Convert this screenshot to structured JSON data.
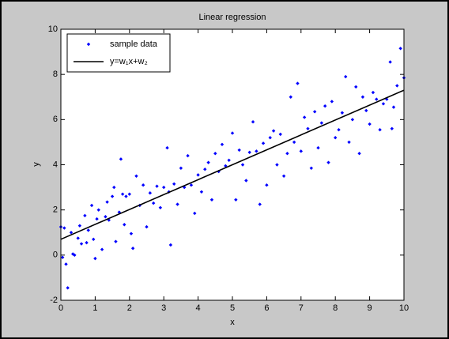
{
  "chart_data": {
    "type": "scatter",
    "title": "Linear regression",
    "x_label": "x",
    "y_label": "y",
    "xlim": [
      0,
      10
    ],
    "ylim": [
      -2,
      10
    ],
    "xticks": [
      0,
      1,
      2,
      3,
      4,
      5,
      6,
      7,
      8,
      9,
      10
    ],
    "yticks": [
      -2,
      0,
      2,
      4,
      6,
      8,
      10
    ],
    "legend": "upper left",
    "series": [
      {
        "name": "sample data",
        "color": "#0000ff",
        "style": "markers",
        "x": [
          0.0,
          0.05,
          0.1,
          0.15,
          0.2,
          0.3,
          0.35,
          0.4,
          0.5,
          0.55,
          0.6,
          0.7,
          0.75,
          0.8,
          0.9,
          0.95,
          1.0,
          1.05,
          1.1,
          1.2,
          1.3,
          1.35,
          1.4,
          1.5,
          1.55,
          1.6,
          1.7,
          1.75,
          1.8,
          1.85,
          1.9,
          2.0,
          2.05,
          2.1,
          2.2,
          2.3,
          2.4,
          2.5,
          2.6,
          2.7,
          2.8,
          2.9,
          3.0,
          3.1,
          3.15,
          3.2,
          3.3,
          3.4,
          3.5,
          3.6,
          3.7,
          3.8,
          3.9,
          4.0,
          4.1,
          4.2,
          4.3,
          4.4,
          4.5,
          4.6,
          4.7,
          4.8,
          4.9,
          5.0,
          5.1,
          5.2,
          5.3,
          5.4,
          5.5,
          5.6,
          5.7,
          5.8,
          5.9,
          6.0,
          6.1,
          6.2,
          6.3,
          6.4,
          6.5,
          6.6,
          6.7,
          6.8,
          6.9,
          7.0,
          7.1,
          7.2,
          7.3,
          7.4,
          7.5,
          7.6,
          7.7,
          7.8,
          7.9,
          8.0,
          8.1,
          8.2,
          8.3,
          8.4,
          8.5,
          8.6,
          8.7,
          8.8,
          8.9,
          9.0,
          9.1,
          9.2,
          9.3,
          9.4,
          9.5,
          9.6,
          9.65,
          9.7,
          9.8,
          9.9,
          10.0
        ],
        "values": [
          1.25,
          -0.1,
          1.2,
          -0.4,
          -1.45,
          1.0,
          0.05,
          0.0,
          0.75,
          1.3,
          0.5,
          1.75,
          0.55,
          1.1,
          2.2,
          0.7,
          -0.15,
          1.6,
          2.0,
          0.25,
          1.7,
          2.35,
          1.55,
          2.6,
          3.0,
          0.6,
          1.9,
          4.25,
          2.7,
          1.35,
          2.6,
          2.7,
          0.95,
          0.3,
          3.5,
          2.2,
          3.1,
          1.25,
          2.75,
          2.3,
          3.05,
          2.1,
          3.0,
          4.75,
          2.8,
          0.45,
          3.15,
          2.25,
          3.85,
          3.0,
          4.4,
          3.1,
          1.85,
          3.55,
          2.8,
          3.8,
          4.1,
          2.45,
          4.5,
          3.7,
          4.9,
          3.95,
          4.2,
          5.4,
          2.45,
          4.65,
          4.0,
          3.3,
          4.55,
          5.9,
          4.6,
          2.25,
          4.95,
          3.1,
          5.2,
          5.5,
          4.0,
          5.35,
          3.5,
          4.5,
          7.0,
          5.0,
          7.6,
          4.6,
          6.1,
          5.6,
          3.85,
          6.35,
          4.75,
          5.85,
          6.6,
          4.1,
          6.8,
          5.2,
          5.55,
          6.3,
          7.9,
          5.0,
          6.0,
          7.45,
          4.5,
          7.0,
          6.4,
          5.8,
          7.2,
          6.9,
          5.55,
          6.7,
          6.9,
          8.55,
          5.6,
          6.55,
          7.5,
          9.15,
          7.85
        ]
      },
      {
        "name": "y=w₁x+w₂",
        "color": "#000000",
        "style": "line",
        "x": [
          0,
          10
        ],
        "values": [
          0.7,
          7.3
        ]
      }
    ]
  }
}
